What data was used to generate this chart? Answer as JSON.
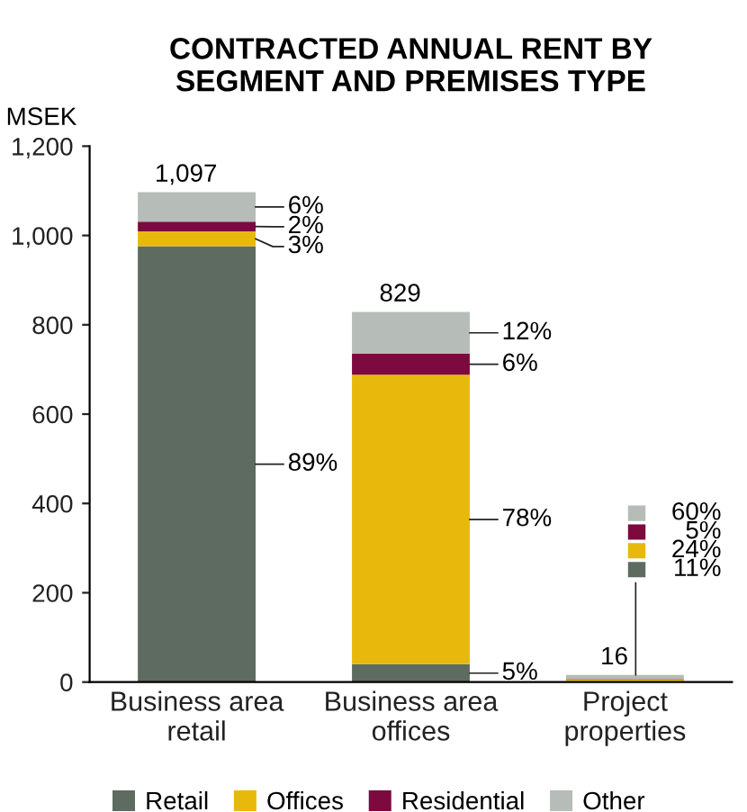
{
  "chart_data": {
    "type": "bar",
    "title": "CONTRACTED ANNUAL RENT BY\nSEGMENT AND PREMISES TYPE",
    "ylabel": "MSEK",
    "categories": [
      "Business area\nretail",
      "Business area\noffices",
      "Project\nproperties"
    ],
    "stacked": true,
    "series": [
      {
        "name": "Retail",
        "color": "#5e6b61",
        "values": [
          976,
          40,
          2
        ]
      },
      {
        "name": "Offices",
        "color": "#e8b90c",
        "values": [
          33,
          648,
          4
        ]
      },
      {
        "name": "Residential",
        "color": "#7c0a3e",
        "values": [
          22,
          47,
          1
        ]
      },
      {
        "name": "Other",
        "color": "#b6bcb7",
        "values": [
          66,
          94,
          9
        ]
      }
    ],
    "totals": [
      "1,097",
      "829",
      "16"
    ],
    "ylim": [
      0,
      1200
    ],
    "yticks": [
      0,
      200,
      400,
      600,
      800,
      {
        "value": 1000,
        "label": "1,000"
      },
      {
        "value": 1200,
        "label": "1,200"
      }
    ],
    "grid": false,
    "legend": "bottom",
    "annotations": [
      "6%",
      "2%",
      "3%",
      "89%",
      "12%",
      "6%",
      "78%",
      "5%",
      "60%",
      " 5%",
      "24%",
      "11%"
    ]
  }
}
